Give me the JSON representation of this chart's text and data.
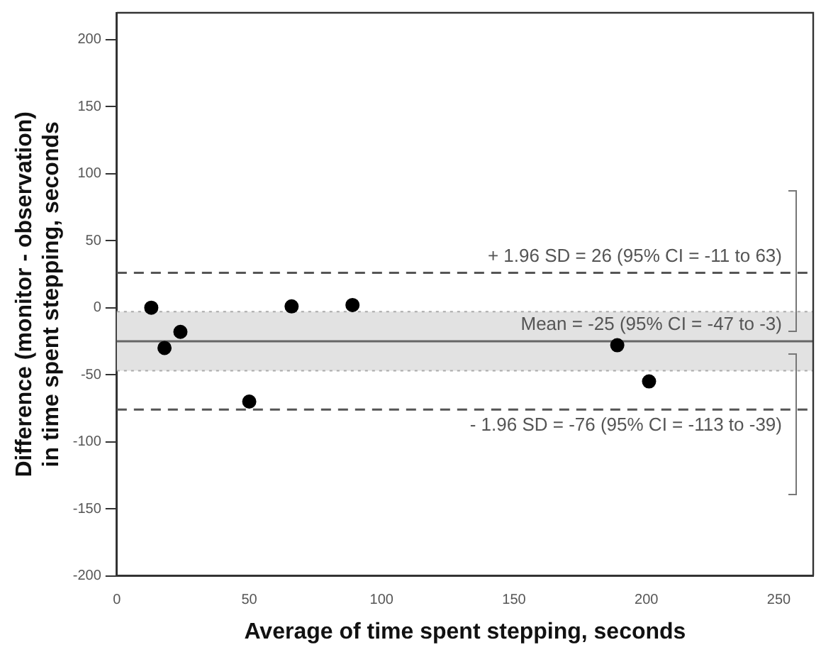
{
  "chart_data": {
    "type": "scatter",
    "xlabel": "Average of time spent stepping, seconds",
    "ylabel": "Difference (monitor - observation) in time spent stepping, seconds",
    "series": [
      {
        "color": "#000000",
        "x": [
          13,
          18,
          24,
          50,
          66,
          89,
          189,
          201
        ],
        "values": [
          0,
          -30,
          -18,
          -70,
          1,
          2,
          -28,
          -55
        ]
      }
    ],
    "xlim": [
      0,
      263
    ],
    "xticks": [
      0,
      50,
      100,
      150,
      200,
      250
    ],
    "ylim": [
      -200,
      220
    ],
    "yticks": [
      -200,
      -150,
      -100,
      -50,
      0,
      50,
      100,
      150,
      200
    ],
    "bands": [
      {
        "axis": "y",
        "from": -47,
        "to": -3,
        "color": "#e2e2e2"
      }
    ],
    "ref_lines": [
      {
        "axis": "y",
        "value": 26,
        "label": "+ 1.96 SD = 26 (95% CI = -11 to 63)",
        "line_style": "dashed",
        "color": "#555555"
      },
      {
        "axis": "y",
        "value": -25,
        "label": "Mean = -25 (95% CI = -47 to -3)",
        "line_style": "solid",
        "color": "#666666"
      },
      {
        "axis": "y",
        "value": -3,
        "line_style": "dotted",
        "color": "#aaaaaa"
      },
      {
        "axis": "y",
        "value": -47,
        "line_style": "dotted",
        "color": "#aaaaaa"
      },
      {
        "axis": "y",
        "value": -76,
        "label": "- 1.96 SD = -76 (95% CI = -113 to -39)",
        "line_style": "dashed",
        "color": "#555555"
      }
    ],
    "grid": false,
    "legend": false,
    "marker": "circle"
  }
}
